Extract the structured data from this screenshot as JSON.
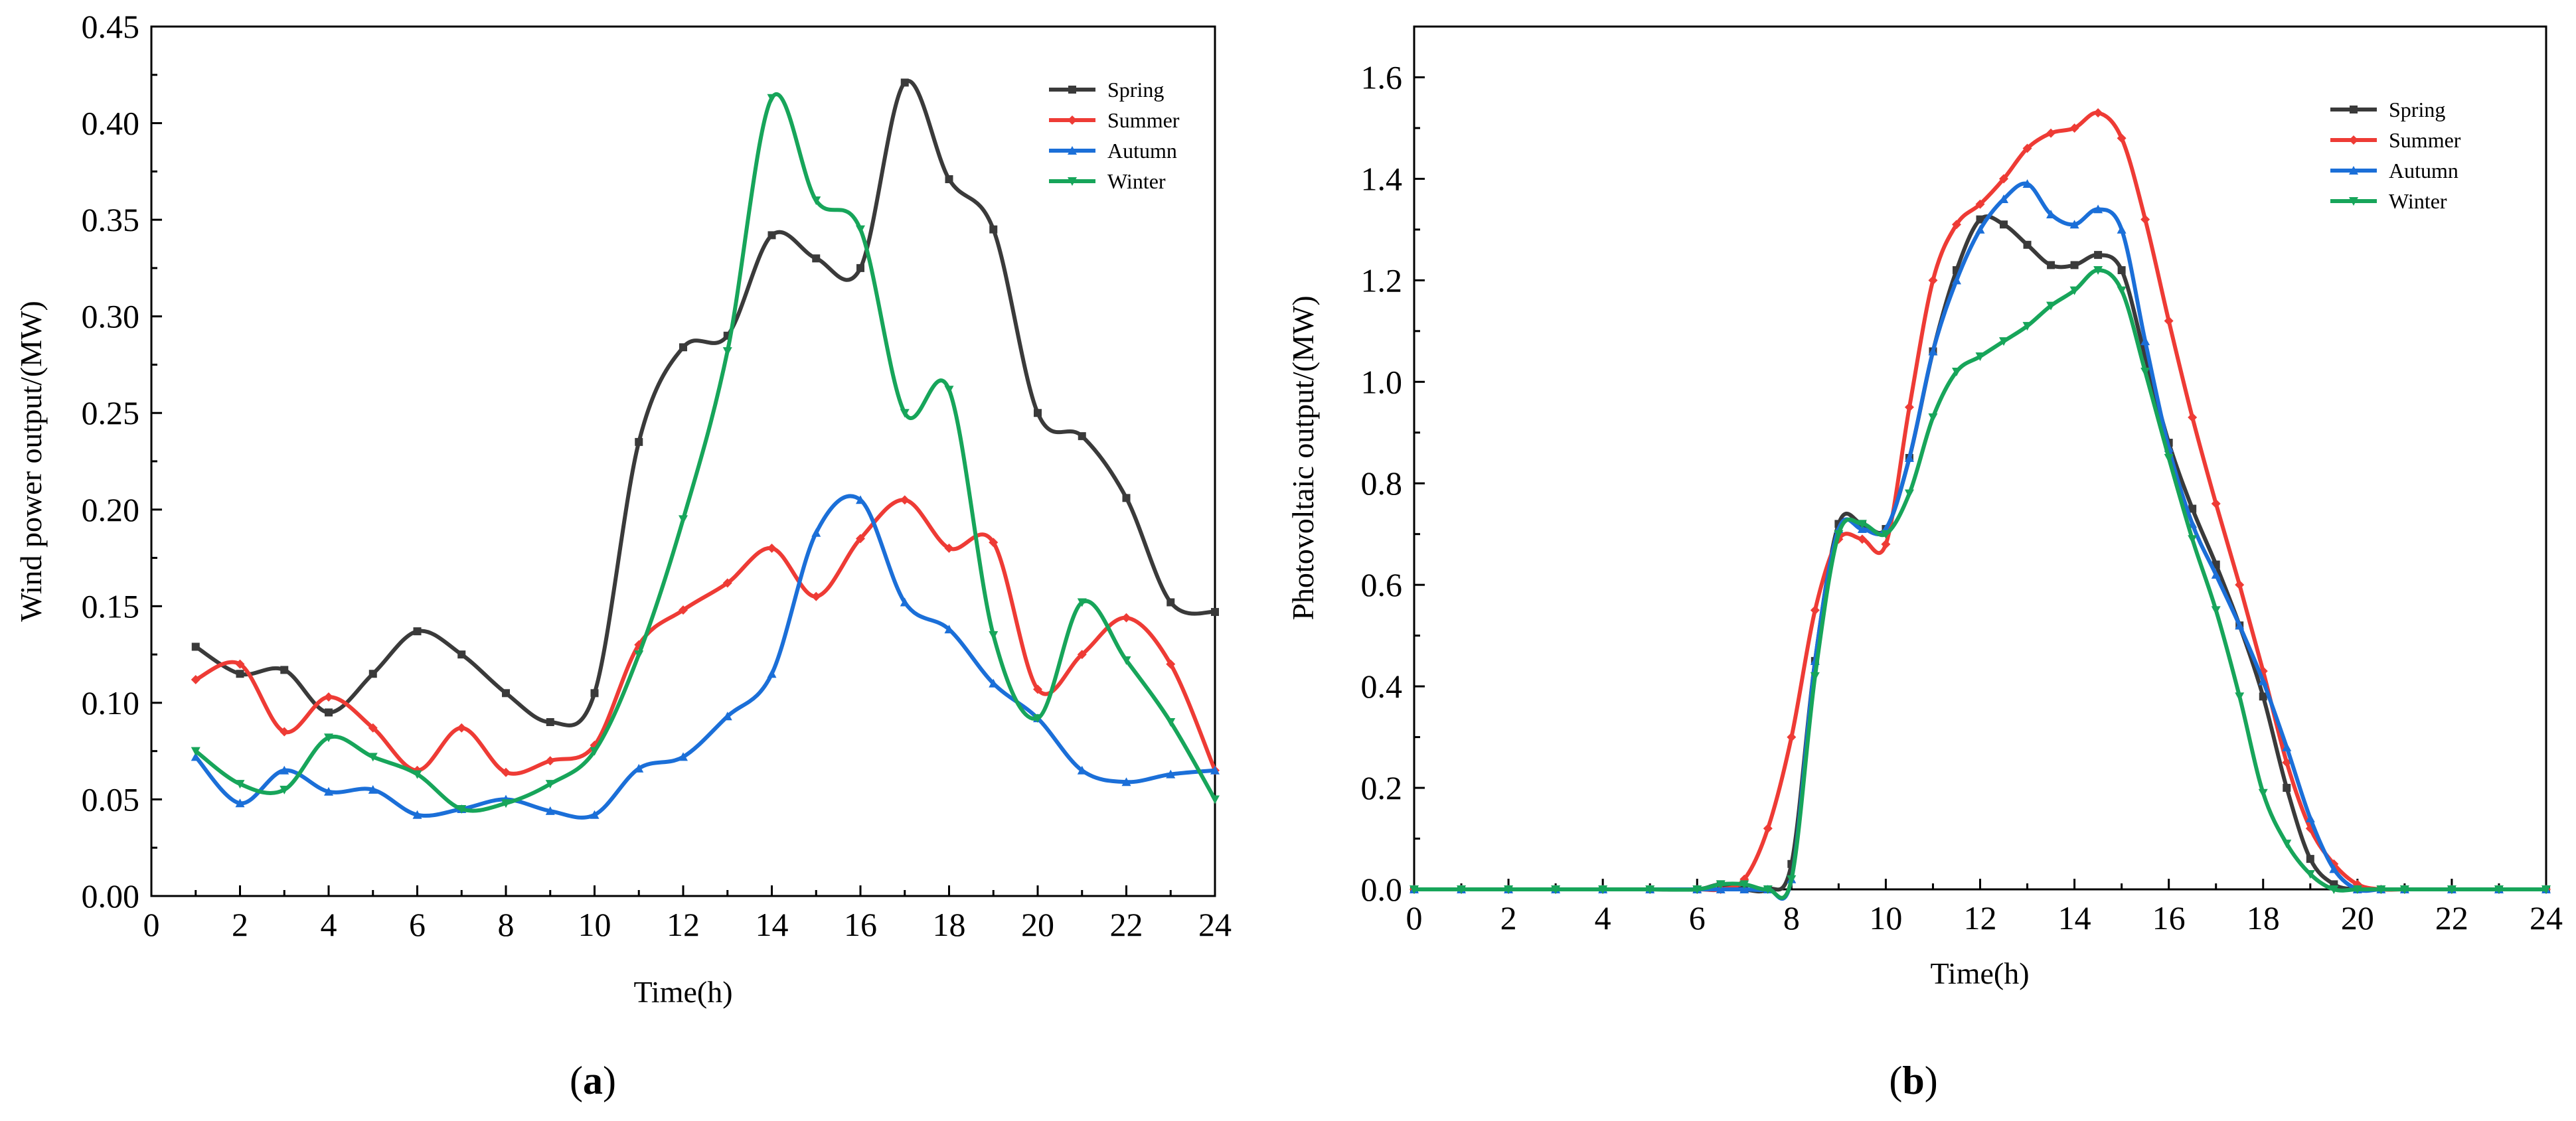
{
  "chart_data": [
    {
      "type": "line",
      "panel_label": "a",
      "xlabel": "Time(h)",
      "ylabel": "Wind power output/(MW)",
      "xlim": [
        0,
        24
      ],
      "ylim": [
        0,
        0.45
      ],
      "xticks": [
        0,
        2,
        4,
        6,
        8,
        10,
        12,
        14,
        16,
        18,
        20,
        22,
        24
      ],
      "yticks": [
        0,
        0.05,
        0.1,
        0.15,
        0.2,
        0.25,
        0.3,
        0.35,
        0.4,
        0.45
      ],
      "xtick_labels": [
        "0",
        "2",
        "4",
        "6",
        "8",
        "10",
        "12",
        "14",
        "16",
        "18",
        "20",
        "22",
        "24"
      ],
      "ytick_labels": [
        "0.00",
        "0.05",
        "0.10",
        "0.15",
        "0.20",
        "0.25",
        "0.30",
        "0.35",
        "0.40",
        "0.45"
      ],
      "legend_position": "top-right",
      "x": [
        1,
        2,
        3,
        4,
        5,
        6,
        7,
        8,
        9,
        10,
        11,
        12,
        13,
        14,
        15,
        16,
        17,
        18,
        19,
        20,
        21,
        22,
        23,
        24
      ],
      "series": [
        {
          "name": "Spring",
          "color": "#3a3a3a",
          "marker": "square",
          "values": [
            0.129,
            0.115,
            0.117,
            0.095,
            0.115,
            0.137,
            0.125,
            0.105,
            0.09,
            0.105,
            0.235,
            0.284,
            0.29,
            0.342,
            0.33,
            0.325,
            0.421,
            0.371,
            0.345,
            0.25,
            0.238,
            0.206,
            0.152,
            0.147
          ]
        },
        {
          "name": "Summer",
          "color": "#ee3b35",
          "marker": "diamond",
          "values": [
            0.112,
            0.12,
            0.085,
            0.103,
            0.087,
            0.065,
            0.087,
            0.064,
            0.07,
            0.078,
            0.13,
            0.148,
            0.162,
            0.18,
            0.155,
            0.185,
            0.205,
            0.18,
            0.183,
            0.107,
            0.125,
            0.144,
            0.12,
            0.065
          ]
        },
        {
          "name": "Autumn",
          "color": "#1b6fd8",
          "marker": "triangle",
          "values": [
            0.072,
            0.048,
            0.065,
            0.054,
            0.055,
            0.042,
            0.045,
            0.05,
            0.044,
            0.042,
            0.066,
            0.072,
            0.093,
            0.115,
            0.188,
            0.205,
            0.152,
            0.138,
            0.11,
            0.092,
            0.065,
            0.059,
            0.063,
            0.065
          ]
        },
        {
          "name": "Winter",
          "color": "#17a55a",
          "marker": "triangle-down",
          "values": [
            0.075,
            0.058,
            0.055,
            0.082,
            0.072,
            0.063,
            0.045,
            0.048,
            0.058,
            0.075,
            0.125,
            0.195,
            0.282,
            0.413,
            0.36,
            0.345,
            0.25,
            0.262,
            0.135,
            0.092,
            0.152,
            0.122,
            0.09,
            0.05
          ]
        }
      ]
    },
    {
      "type": "line",
      "panel_label": "b",
      "xlabel": "Time(h)",
      "ylabel": "Photovoltaic output/(MW)",
      "xlim": [
        0,
        24
      ],
      "ylim": [
        0,
        1.7
      ],
      "xticks": [
        0,
        2,
        4,
        6,
        8,
        10,
        12,
        14,
        16,
        18,
        20,
        22,
        24
      ],
      "yticks": [
        0,
        0.2,
        0.4,
        0.6,
        0.8,
        1.0,
        1.2,
        1.4,
        1.6
      ],
      "xtick_labels": [
        "0",
        "2",
        "4",
        "6",
        "8",
        "10",
        "12",
        "14",
        "16",
        "18",
        "20",
        "22",
        "24"
      ],
      "ytick_labels": [
        "0.0",
        "0.2",
        "0.4",
        "0.6",
        "0.8",
        "1.0",
        "1.2",
        "1.4",
        "1.6"
      ],
      "legend_position": "top-right",
      "x": [
        0,
        1,
        2,
        3,
        4,
        5,
        6,
        6.5,
        7,
        7.5,
        8,
        8.5,
        9,
        9.5,
        10,
        10.5,
        11,
        11.5,
        12,
        12.5,
        13,
        13.5,
        14,
        14.5,
        15,
        15.5,
        16,
        16.5,
        17,
        17.5,
        18,
        18.5,
        19,
        19.5,
        20,
        20.5,
        21,
        22,
        23,
        24
      ],
      "series": [
        {
          "name": "Spring",
          "color": "#3a3a3a",
          "marker": "square",
          "values": [
            0,
            0,
            0,
            0,
            0,
            0,
            0,
            0.01,
            0,
            0,
            0.05,
            0.45,
            0.72,
            0.72,
            0.71,
            0.85,
            1.06,
            1.22,
            1.32,
            1.31,
            1.27,
            1.23,
            1.23,
            1.25,
            1.22,
            1.05,
            0.88,
            0.75,
            0.64,
            0.52,
            0.38,
            0.2,
            0.06,
            0.01,
            0,
            0,
            0,
            0,
            0,
            0
          ]
        },
        {
          "name": "Summer",
          "color": "#ee3b35",
          "marker": "diamond",
          "values": [
            0,
            0,
            0,
            0,
            0,
            0,
            0,
            0,
            0.02,
            0.12,
            0.3,
            0.55,
            0.69,
            0.69,
            0.68,
            0.95,
            1.2,
            1.31,
            1.35,
            1.4,
            1.46,
            1.49,
            1.5,
            1.53,
            1.48,
            1.32,
            1.12,
            0.93,
            0.76,
            0.6,
            0.43,
            0.25,
            0.12,
            0.05,
            0.01,
            0,
            0,
            0,
            0,
            0
          ]
        },
        {
          "name": "Autumn",
          "color": "#1b6fd8",
          "marker": "triangle",
          "values": [
            0,
            0,
            0,
            0,
            0,
            0,
            0,
            0,
            0,
            0,
            0.02,
            0.45,
            0.71,
            0.71,
            0.71,
            0.85,
            1.06,
            1.2,
            1.3,
            1.36,
            1.39,
            1.33,
            1.31,
            1.34,
            1.3,
            1.08,
            0.87,
            0.72,
            0.62,
            0.52,
            0.41,
            0.28,
            0.14,
            0.04,
            0,
            0,
            0,
            0,
            0,
            0
          ]
        },
        {
          "name": "Winter",
          "color": "#17a55a",
          "marker": "triangle-down",
          "values": [
            0,
            0,
            0,
            0,
            0,
            0,
            0,
            0.01,
            0.01,
            0,
            0.02,
            0.42,
            0.7,
            0.72,
            0.7,
            0.78,
            0.93,
            1.02,
            1.05,
            1.08,
            1.11,
            1.15,
            1.18,
            1.22,
            1.18,
            1.02,
            0.85,
            0.69,
            0.55,
            0.38,
            0.19,
            0.09,
            0.03,
            0,
            0,
            0,
            0,
            0,
            0,
            0
          ]
        }
      ]
    }
  ]
}
